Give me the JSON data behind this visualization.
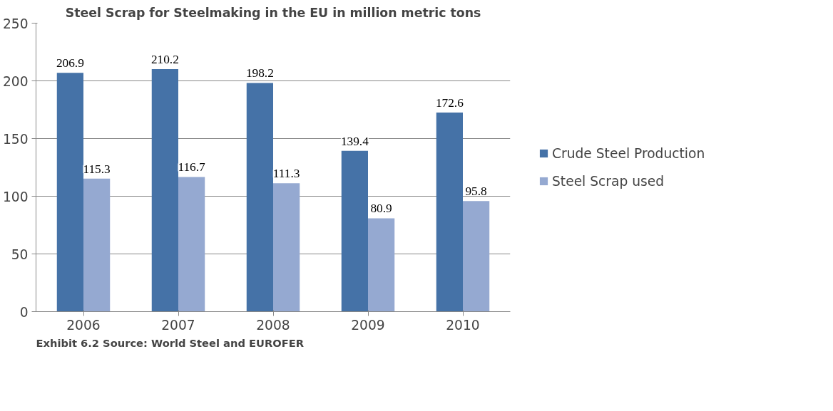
{
  "chart_data": {
    "type": "bar",
    "title": "Steel Scrap for Steelmaking in the EU in million metric tons",
    "categories": [
      "2006",
      "2007",
      "2008",
      "2009",
      "2010"
    ],
    "series": [
      {
        "name": "Crude Steel Production",
        "color": "#4572a7",
        "values": [
          206.9,
          210.2,
          198.2,
          139.4,
          172.6
        ]
      },
      {
        "name": "Steel Scrap used",
        "color": "#95a9d1",
        "values": [
          115.3,
          116.7,
          111.3,
          80.9,
          95.8
        ]
      }
    ],
    "ylim": [
      0,
      250
    ],
    "yticks": [
      0,
      50,
      100,
      150,
      200,
      250
    ],
    "grid": "y",
    "legend": "right",
    "data_labels": true,
    "annotations": [
      "Exhibit 6.2 Source: World Steel and EUROFER"
    ]
  }
}
